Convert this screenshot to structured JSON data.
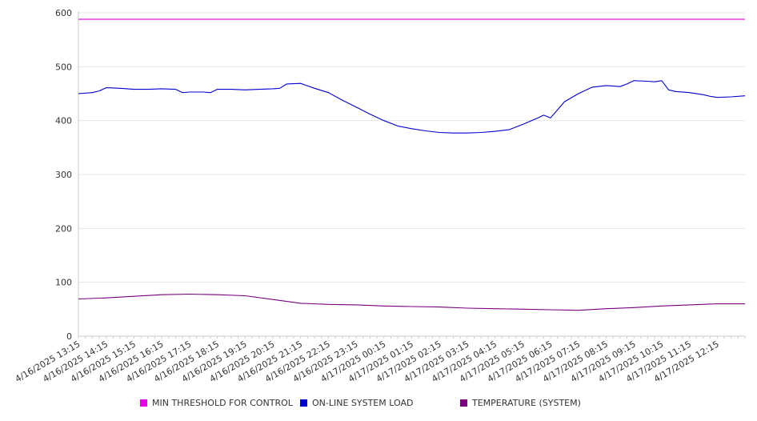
{
  "chart_data": {
    "type": "line",
    "x_tick_labels": [
      "4/16/2025 13:15",
      "4/16/2025 14:15",
      "4/16/2025 15:15",
      "4/16/2025 16:15",
      "4/16/2025 17:15",
      "4/16/2025 18:15",
      "4/16/2025 19:15",
      "4/16/2025 20:15",
      "4/16/2025 21:15",
      "4/16/2025 22:15",
      "4/16/2025 23:15",
      "4/17/2025 00:15",
      "4/17/2025 01:15",
      "4/17/2025 02:15",
      "4/17/2025 03:15",
      "4/17/2025 04:15",
      "4/17/2025 05:15",
      "4/17/2025 06:15",
      "4/17/2025 07:15",
      "4/17/2025 08:15",
      "4/17/2025 09:15",
      "4/17/2025 10:15",
      "4/17/2025 11:15",
      "4/17/2025 12:15"
    ],
    "y_ticks": [
      0,
      100,
      200,
      300,
      400,
      500,
      600
    ],
    "ylim": [
      0,
      600
    ],
    "grid": true,
    "legend_position": "bottom",
    "series": [
      {
        "name": "MIN THRESHOLD FOR CONTROL",
        "color": "#e600e6",
        "x": [
          "4/16/2025 13:15",
          "4/17/2025 13:15"
        ],
        "y": [
          588,
          588
        ]
      },
      {
        "name": "ON-LINE SYSTEM LOAD",
        "color": "#0000d0",
        "x": [
          "4/16/2025 13:15",
          "4/16/2025 13:45",
          "4/16/2025 14:00",
          "4/16/2025 14:15",
          "4/16/2025 14:45",
          "4/16/2025 15:15",
          "4/16/2025 15:45",
          "4/16/2025 16:15",
          "4/16/2025 16:45",
          "4/16/2025 17:00",
          "4/16/2025 17:15",
          "4/16/2025 17:45",
          "4/16/2025 18:00",
          "4/16/2025 18:15",
          "4/16/2025 18:45",
          "4/16/2025 19:15",
          "4/16/2025 19:45",
          "4/16/2025 20:15",
          "4/16/2025 20:30",
          "4/16/2025 20:45",
          "4/16/2025 21:15",
          "4/16/2025 21:45",
          "4/16/2025 22:15",
          "4/16/2025 22:45",
          "4/16/2025 23:15",
          "4/16/2025 23:45",
          "4/17/2025 00:15",
          "4/17/2025 00:45",
          "4/17/2025 01:15",
          "4/17/2025 01:45",
          "4/17/2025 02:15",
          "4/17/2025 02:45",
          "4/17/2025 03:15",
          "4/17/2025 03:45",
          "4/17/2025 04:15",
          "4/17/2025 04:45",
          "4/17/2025 05:15",
          "4/17/2025 05:45",
          "4/17/2025 06:00",
          "4/17/2025 06:15",
          "4/17/2025 06:45",
          "4/17/2025 07:15",
          "4/17/2025 07:45",
          "4/17/2025 08:15",
          "4/17/2025 08:45",
          "4/17/2025 09:00",
          "4/17/2025 09:15",
          "4/17/2025 09:45",
          "4/17/2025 10:00",
          "4/17/2025 10:15",
          "4/17/2025 10:30",
          "4/17/2025 10:45",
          "4/17/2025 11:15",
          "4/17/2025 11:45",
          "4/17/2025 12:00",
          "4/17/2025 12:15",
          "4/17/2025 12:45",
          "4/17/2025 13:15"
        ],
        "y": [
          450,
          452,
          455,
          461,
          460,
          458,
          458,
          459,
          458,
          452,
          453,
          453,
          452,
          458,
          458,
          457,
          458,
          459,
          460,
          468,
          469,
          460,
          452,
          438,
          425,
          412,
          400,
          390,
          385,
          381,
          378,
          377,
          377,
          378,
          380,
          383,
          393,
          404,
          410,
          405,
          435,
          450,
          462,
          465,
          463,
          468,
          474,
          473,
          472,
          474,
          457,
          454,
          452,
          448,
          445,
          443,
          444,
          446
        ]
      },
      {
        "name": "TEMPERATURE (SYSTEM)",
        "color": "#7a0080",
        "x": [
          "4/16/2025 13:15",
          "4/16/2025 14:15",
          "4/16/2025 15:15",
          "4/16/2025 16:15",
          "4/16/2025 17:15",
          "4/16/2025 18:15",
          "4/16/2025 19:15",
          "4/16/2025 20:15",
          "4/16/2025 21:15",
          "4/16/2025 22:15",
          "4/16/2025 23:15",
          "4/17/2025 00:15",
          "4/17/2025 01:15",
          "4/17/2025 02:15",
          "4/17/2025 03:15",
          "4/17/2025 04:15",
          "4/17/2025 05:15",
          "4/17/2025 06:15",
          "4/17/2025 07:15",
          "4/17/2025 08:15",
          "4/17/2025 09:15",
          "4/17/2025 10:15",
          "4/17/2025 11:15",
          "4/17/2025 12:15",
          "4/17/2025 13:15"
        ],
        "y": [
          69,
          71,
          74,
          77,
          78,
          77,
          75,
          68,
          61,
          59,
          58,
          56,
          55,
          54,
          52,
          51,
          50,
          49,
          48,
          51,
          53,
          56,
          58,
          60,
          60
        ]
      }
    ]
  }
}
